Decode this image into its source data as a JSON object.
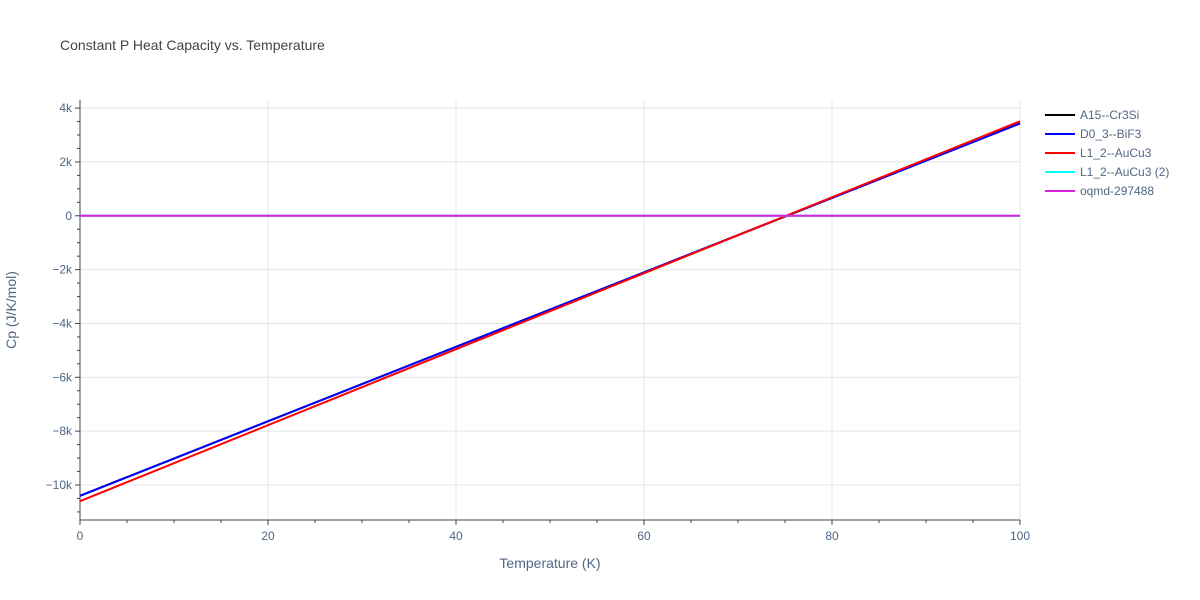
{
  "chart_data": {
    "type": "line",
    "title": "Constant P Heat Capacity vs. Temperature",
    "xlabel": "Temperature (K)",
    "ylabel": "Cp (J/K/mol)",
    "xlim": [
      0,
      100
    ],
    "ylim": [
      -11300,
      4300
    ],
    "x_ticks": [
      0,
      20,
      40,
      60,
      80,
      100
    ],
    "x_tick_labels": [
      "0",
      "20",
      "40",
      "60",
      "80",
      "100"
    ],
    "y_ticks": [
      4000,
      2000,
      0,
      -2000,
      -4000,
      -6000,
      -8000,
      -10000
    ],
    "y_tick_labels": [
      "4k",
      "2k",
      "0",
      "−2k",
      "−4k",
      "−6k",
      "−8k",
      "−10k"
    ],
    "grid": true,
    "legend_position": "top-right",
    "series": [
      {
        "name": "A15--Cr3Si",
        "color": "#000000",
        "x": [
          0,
          100
        ],
        "y": [
          -10400,
          3430
        ]
      },
      {
        "name": "D0_3--BiF3",
        "color": "#0000ff",
        "x": [
          0,
          100
        ],
        "y": [
          -10400,
          3430
        ]
      },
      {
        "name": "L1_2--AuCu3",
        "color": "#ff0000",
        "x": [
          0,
          100
        ],
        "y": [
          -10600,
          3510
        ]
      },
      {
        "name": "L1_2--AuCu3 (2)",
        "color": "#00ffff",
        "x": [
          0,
          100
        ],
        "y": [
          0,
          0
        ]
      },
      {
        "name": "oqmd-297488",
        "color": "#dd22dd",
        "x": [
          0,
          100
        ],
        "y": [
          0,
          0
        ]
      }
    ]
  }
}
